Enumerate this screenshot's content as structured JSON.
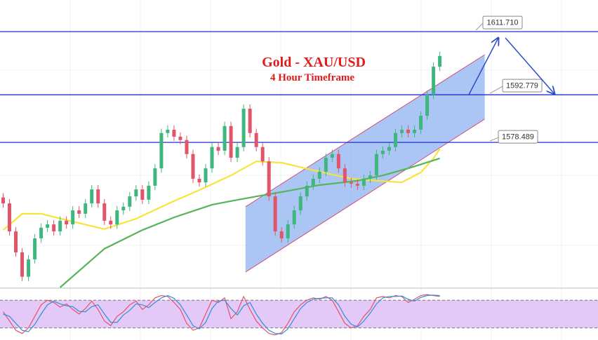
{
  "chart_data": {
    "type": "candlestick",
    "title": "Gold - XAU/USD",
    "subtitle": "4 Hour Timeframe",
    "xlim": [
      -0.5,
      94
    ],
    "ylim": [
      1535,
      1621.2
    ],
    "up_color": "#3fb67e",
    "down_color": "#e0556a",
    "open": [
      1562.0,
      1560.2,
      1551.8,
      1545.5,
      1538.2,
      1543.4,
      1549.7,
      1552.9,
      1553.9,
      1551.8,
      1555.0,
      1553.9,
      1558.1,
      1557.1,
      1560.2,
      1564.4,
      1560.2,
      1555.0,
      1553.9,
      1558.1,
      1559.2,
      1562.3,
      1564.4,
      1561.3,
      1565.5,
      1570.7,
      1581.3,
      1582.3,
      1580.2,
      1579.2,
      1575.0,
      1567.6,
      1566.5,
      1570.7,
      1577.1,
      1576.0,
      1583.4,
      1573.9,
      1577.1,
      1588.6,
      1581.3,
      1577.1,
      1572.8,
      1562.3,
      1551.8,
      1549.7,
      1553.9,
      1558.1,
      1562.3,
      1565.5,
      1567.6,
      1569.7,
      1573.9,
      1575.0,
      1570.7,
      1566.5,
      1566.1,
      1565.5,
      1567.6,
      1568.6,
      1575.0,
      1576.0,
      1577.1,
      1581.3,
      1582.3,
      1581.3,
      1582.3,
      1586.5,
      1592.8,
      1601.2
    ],
    "high": [
      1563.3,
      1561.5,
      1553.1,
      1546.8,
      1544.7,
      1551.0,
      1554.2,
      1555.2,
      1555.2,
      1556.3,
      1556.3,
      1559.4,
      1559.4,
      1561.5,
      1565.7,
      1565.7,
      1561.5,
      1556.3,
      1559.4,
      1560.5,
      1563.6,
      1565.7,
      1565.7,
      1566.8,
      1572.0,
      1582.6,
      1583.6,
      1583.6,
      1581.5,
      1580.5,
      1576.3,
      1568.9,
      1572.0,
      1578.4,
      1578.4,
      1584.7,
      1584.7,
      1578.4,
      1589.9,
      1589.9,
      1582.6,
      1578.4,
      1574.1,
      1563.6,
      1553.1,
      1555.2,
      1559.4,
      1563.6,
      1566.8,
      1568.9,
      1571.0,
      1575.2,
      1576.3,
      1576.3,
      1572.0,
      1567.8,
      1567.4,
      1568.9,
      1569.9,
      1576.3,
      1577.3,
      1578.4,
      1582.6,
      1583.6,
      1583.6,
      1583.6,
      1587.8,
      1594.1,
      1602.5,
      1605.7
    ],
    "low": [
      1558.9,
      1550.5,
      1544.2,
      1536.9,
      1536.9,
      1542.1,
      1548.4,
      1551.6,
      1550.5,
      1550.5,
      1552.6,
      1552.6,
      1555.8,
      1555.8,
      1558.9,
      1558.9,
      1553.7,
      1552.6,
      1552.6,
      1556.8,
      1557.9,
      1561.0,
      1560.0,
      1560.0,
      1564.2,
      1569.4,
      1580.0,
      1578.9,
      1577.9,
      1573.7,
      1566.3,
      1565.2,
      1565.2,
      1569.4,
      1574.7,
      1574.7,
      1572.6,
      1572.6,
      1575.8,
      1580.0,
      1575.8,
      1571.5,
      1561.0,
      1550.5,
      1548.4,
      1548.4,
      1552.6,
      1556.8,
      1561.0,
      1564.2,
      1566.3,
      1568.4,
      1572.6,
      1569.4,
      1565.2,
      1564.8,
      1564.2,
      1564.2,
      1566.3,
      1567.3,
      1573.7,
      1574.7,
      1575.8,
      1580.0,
      1580.0,
      1580.0,
      1581.0,
      1585.2,
      1591.5,
      1599.9
    ],
    "close": [
      1560.2,
      1551.8,
      1545.5,
      1538.2,
      1543.4,
      1549.7,
      1552.9,
      1553.9,
      1551.8,
      1555.0,
      1553.9,
      1558.1,
      1557.1,
      1560.2,
      1564.4,
      1560.2,
      1555.0,
      1553.9,
      1558.1,
      1559.2,
      1562.3,
      1564.4,
      1561.3,
      1565.5,
      1570.7,
      1581.3,
      1582.3,
      1580.2,
      1579.2,
      1575.0,
      1567.6,
      1566.5,
      1570.7,
      1577.1,
      1576.0,
      1583.4,
      1573.9,
      1577.1,
      1588.6,
      1581.3,
      1577.1,
      1572.8,
      1562.3,
      1551.8,
      1549.7,
      1553.9,
      1558.1,
      1562.3,
      1565.5,
      1567.6,
      1569.7,
      1573.9,
      1575.0,
      1570.7,
      1566.5,
      1566.1,
      1565.5,
      1567.6,
      1568.6,
      1575.0,
      1576.0,
      1577.1,
      1581.3,
      1582.3,
      1581.3,
      1582.3,
      1586.5,
      1592.8,
      1601.2,
      1604.4
    ],
    "moving_averages": [
      {
        "color": "#f7e43b",
        "x": [
          0,
          3,
          6,
          10,
          16,
          21,
          27,
          31,
          36,
          40,
          44,
          50,
          55,
          59,
          63,
          66,
          68,
          69
        ],
        "values": [
          1552.2,
          1557.1,
          1557.1,
          1555.2,
          1552.5,
          1555.6,
          1560.9,
          1564.2,
          1568.6,
          1572.8,
          1572.4,
          1569.7,
          1567.6,
          1567.0,
          1566.5,
          1569.5,
          1573.7,
          1576.6
        ]
      },
      {
        "color": "#56b45a",
        "x": [
          9,
          16,
          22,
          27,
          33,
          36,
          40,
          44,
          50,
          56,
          60,
          64,
          69
        ],
        "values": [
          1535.0,
          1546.6,
          1552.2,
          1556.0,
          1559.8,
          1560.9,
          1562.3,
          1563.6,
          1565.7,
          1567.0,
          1568.6,
          1570.7,
          1573.7
        ]
      }
    ],
    "channel": {
      "color": "#8fb3f0",
      "x": [
        38.3,
        76.1
      ],
      "upper": [
        1559.2,
        1604.8
      ],
      "lower": [
        1539.6,
        1585.5
      ]
    },
    "levels": {
      "color": "#1f2fd0",
      "values": [
        1611.71,
        1592.779,
        1578.489
      ],
      "value_labels": [
        "1611.710",
        "1592.779",
        "1578.489"
      ]
    },
    "oscillator": {
      "ylim": [
        0,
        100
      ],
      "levels": [
        20,
        80
      ],
      "band_color": "#e4c8f7",
      "series": [
        {
          "color": "#e0556a",
          "values": [
            55,
            35,
            15,
            8,
            20,
            45,
            70,
            80,
            75,
            65,
            72,
            60,
            50,
            62,
            78,
            60,
            35,
            25,
            45,
            55,
            70,
            78,
            60,
            70,
            85,
            90,
            88,
            75,
            60,
            30,
            15,
            20,
            50,
            80,
            75,
            85,
            40,
            55,
            88,
            60,
            35,
            20,
            8,
            5,
            10,
            30,
            55,
            70,
            80,
            85,
            82,
            88,
            80,
            55,
            30,
            20,
            25,
            45,
            60,
            85,
            88,
            85,
            90,
            88,
            75,
            82,
            90,
            92,
            90,
            88
          ]
        },
        {
          "color": "#2f8fd8",
          "values": [
            50,
            45,
            30,
            15,
            12,
            28,
            50,
            70,
            78,
            72,
            68,
            66,
            56,
            55,
            66,
            70,
            50,
            32,
            32,
            48,
            58,
            72,
            70,
            64,
            75,
            85,
            90,
            84,
            70,
            48,
            25,
            18,
            32,
            62,
            78,
            80,
            62,
            48,
            68,
            75,
            50,
            30,
            15,
            8,
            7,
            18,
            40,
            62,
            75,
            82,
            84,
            85,
            85,
            70,
            45,
            28,
            22,
            35,
            52,
            72,
            85,
            88,
            88,
            89,
            82,
            78,
            86,
            90,
            91,
            90
          ]
        }
      ]
    }
  }
}
